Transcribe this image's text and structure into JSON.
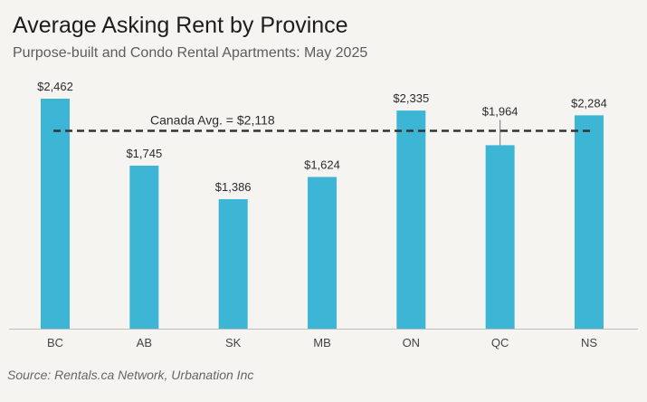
{
  "colors": {
    "bar": "#3db6d6",
    "avg_line": "#333333",
    "label": "#2b2b2b",
    "axis": "#bdbdbd",
    "tick": "#444444"
  },
  "chart_data": {
    "type": "bar",
    "title": "Average Asking Rent by Province",
    "subtitle": "Purpose-built and Condo Rental Apartments: May 2025",
    "categories": [
      "BC",
      "AB",
      "SK",
      "MB",
      "ON",
      "QC",
      "NS"
    ],
    "values": [
      2462,
      1745,
      1386,
      1624,
      2335,
      1964,
      2284
    ],
    "value_labels": [
      "$2,462",
      "$1,745",
      "$1,386",
      "$1,624",
      "$2,335",
      "$1,964",
      "$2,284"
    ],
    "reference_line": {
      "value": 2118,
      "label": "Canada Avg. = $2,118",
      "style": "dashed"
    },
    "xlabel": "",
    "ylabel": "",
    "ylim": [
      0,
      2462
    ],
    "grid": false,
    "legend": "none",
    "source": "Source: Rentals.ca Network, Urbanation Inc"
  }
}
